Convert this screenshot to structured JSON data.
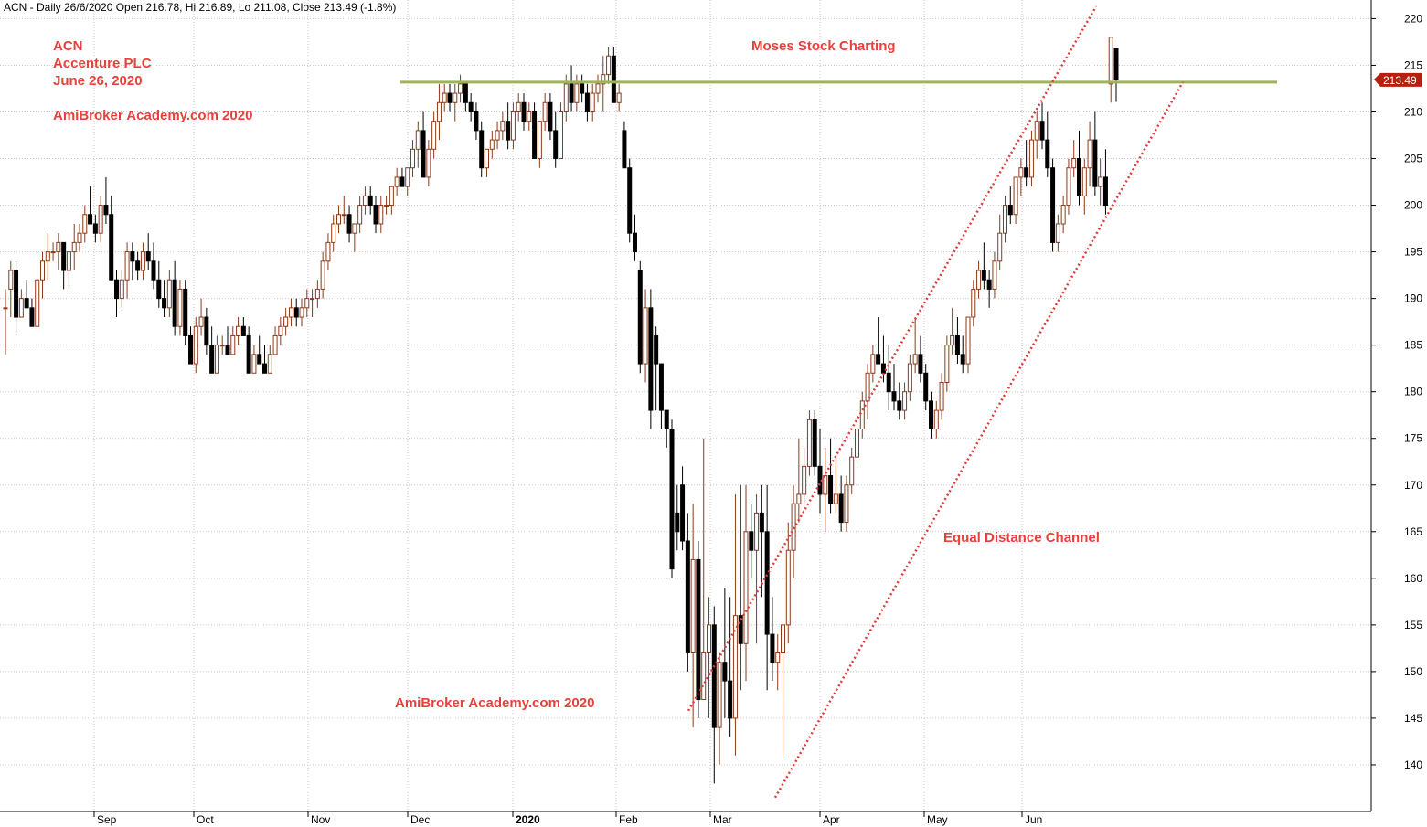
{
  "header": {
    "text": "ACN - Daily 26/6/2020 Open 216.78, Hi 216.89, Lo 211.08, Close 213.49 (-1.8%)"
  },
  "colors": {
    "annotation": "#e8413c",
    "up_candle": "#8b3a1a",
    "down_candle": "#000000",
    "resistance": "#9fb35a",
    "channel": "#e03a3a",
    "grid": "#c8c8c8",
    "price_tag": "#b52010"
  },
  "annotations": {
    "ticker": "ACN",
    "company": "Accenture PLC",
    "date": "June 26, 2020",
    "watermark_top": "AmiBroker Academy.com  2020",
    "title": "Moses Stock Charting",
    "channel_label": "Equal Distance Channel",
    "watermark_bottom": "AmiBroker Academy.com  2020"
  },
  "chart_data": {
    "type": "candlestick",
    "title": "ACN - Daily 26/6/2020",
    "xlabel": "",
    "ylabel": "",
    "ylim": [
      135,
      222
    ],
    "y_ticks": [
      140,
      145,
      150,
      155,
      160,
      165,
      170,
      175,
      180,
      185,
      190,
      195,
      200,
      205,
      210,
      215,
      220
    ],
    "x_ticks": [
      "Sep",
      "Oct",
      "Nov",
      "Dec",
      "2020",
      "Feb",
      "Mar",
      "Apr",
      "May",
      "Jun"
    ],
    "last_close_label": "213.49",
    "last_close": 213.49,
    "grid": true,
    "candles": [
      [
        189,
        191,
        184,
        189
      ],
      [
        191,
        194,
        188,
        193
      ],
      [
        193,
        194,
        186,
        188
      ],
      [
        188,
        191,
        188,
        190
      ],
      [
        190,
        192,
        189,
        189
      ],
      [
        189,
        190,
        187,
        187
      ],
      [
        187,
        192,
        187,
        192
      ],
      [
        192,
        195,
        190,
        194
      ],
      [
        194,
        197,
        192,
        195
      ],
      [
        195,
        196,
        194,
        195
      ],
      [
        195,
        197,
        193,
        196
      ],
      [
        196,
        196,
        191,
        193
      ],
      [
        193,
        195,
        191,
        195
      ],
      [
        195,
        198,
        193,
        196
      ],
      [
        196,
        198,
        195,
        197
      ],
      [
        197,
        200,
        196,
        199
      ],
      [
        199,
        202,
        198,
        198
      ],
      [
        198,
        199,
        196,
        197
      ],
      [
        197,
        201,
        196,
        200
      ],
      [
        200,
        203,
        198,
        199
      ],
      [
        199,
        201,
        192,
        192
      ],
      [
        192,
        193,
        188,
        190
      ],
      [
        190,
        193,
        189,
        192
      ],
      [
        192,
        196,
        190,
        195
      ],
      [
        195,
        196,
        192,
        194
      ],
      [
        194,
        195,
        192,
        193
      ],
      [
        193,
        196,
        192,
        195
      ],
      [
        195,
        197,
        193,
        194
      ],
      [
        194,
        196,
        191,
        192
      ],
      [
        192,
        194,
        189,
        190
      ],
      [
        190,
        192,
        188,
        189
      ],
      [
        189,
        193,
        188,
        192
      ],
      [
        192,
        194,
        186,
        187
      ],
      [
        187,
        192,
        186,
        191
      ],
      [
        191,
        192,
        185,
        186
      ],
      [
        186,
        187,
        183,
        183
      ],
      [
        183,
        188,
        182,
        187
      ],
      [
        187,
        190,
        186,
        188
      ],
      [
        188,
        189,
        184,
        185
      ],
      [
        185,
        187,
        182,
        182
      ],
      [
        182,
        186,
        182,
        185
      ],
      [
        185,
        186,
        184,
        185
      ],
      [
        185,
        187,
        184,
        184
      ],
      [
        184,
        187,
        184,
        186
      ],
      [
        186,
        188,
        185,
        187
      ],
      [
        187,
        188,
        186,
        186
      ],
      [
        186,
        187,
        182,
        182
      ],
      [
        182,
        185,
        182,
        184
      ],
      [
        184,
        186,
        183,
        183
      ],
      [
        183,
        185,
        182,
        182
      ],
      [
        182,
        185,
        182,
        184
      ],
      [
        184,
        187,
        184,
        186
      ],
      [
        186,
        188,
        185,
        187
      ],
      [
        187,
        189,
        186,
        188
      ],
      [
        188,
        190,
        187,
        189
      ],
      [
        189,
        190,
        187,
        188
      ],
      [
        188,
        190,
        187,
        189
      ],
      [
        189,
        191,
        188,
        190
      ],
      [
        190,
        191,
        188,
        190
      ],
      [
        190,
        192,
        189,
        191
      ],
      [
        191,
        195,
        190,
        194
      ],
      [
        194,
        197,
        193,
        196
      ],
      [
        196,
        199,
        195,
        198
      ],
      [
        198,
        200,
        197,
        199
      ],
      [
        199,
        201,
        198,
        199
      ],
      [
        199,
        200,
        196,
        197
      ],
      [
        197,
        198,
        195,
        198
      ],
      [
        198,
        201,
        197,
        200
      ],
      [
        200,
        202,
        199,
        201
      ],
      [
        201,
        202,
        199,
        200
      ],
      [
        200,
        201,
        197,
        198
      ],
      [
        198,
        201,
        197,
        200
      ],
      [
        200,
        201,
        199,
        200
      ],
      [
        200,
        202,
        199,
        202
      ],
      [
        202,
        204,
        201,
        203
      ],
      [
        203,
        204,
        202,
        202
      ],
      [
        202,
        204,
        201,
        204
      ],
      [
        204,
        207,
        203,
        206
      ],
      [
        206,
        209,
        204,
        208
      ],
      [
        208,
        210,
        203,
        203
      ],
      [
        203,
        207,
        202,
        206
      ],
      [
        206,
        210,
        205,
        209
      ],
      [
        209,
        213,
        207,
        211
      ],
      [
        211,
        213,
        210,
        212
      ],
      [
        212,
        213,
        210,
        211
      ],
      [
        211,
        213,
        209,
        212
      ],
      [
        212,
        214,
        211,
        213
      ],
      [
        213,
        213,
        210,
        211
      ],
      [
        211,
        212,
        209,
        210
      ],
      [
        210,
        211,
        207,
        208
      ],
      [
        208,
        209,
        203,
        204
      ],
      [
        204,
        206,
        203,
        206
      ],
      [
        206,
        208,
        205,
        207
      ],
      [
        207,
        209,
        206,
        208
      ],
      [
        208,
        210,
        207,
        209
      ],
      [
        209,
        211,
        206,
        207
      ],
      [
        207,
        211,
        206,
        210
      ],
      [
        210,
        212,
        209,
        211
      ],
      [
        211,
        212,
        208,
        209
      ],
      [
        209,
        211,
        208,
        210
      ],
      [
        210,
        211,
        205,
        205
      ],
      [
        205,
        209,
        204,
        209
      ],
      [
        209,
        212,
        208,
        211
      ],
      [
        211,
        212,
        207,
        208
      ],
      [
        208,
        210,
        204,
        205
      ],
      [
        205,
        211,
        205,
        210
      ],
      [
        210,
        214,
        209,
        213
      ],
      [
        213,
        215,
        210,
        211
      ],
      [
        211,
        214,
        210,
        213
      ],
      [
        213,
        214,
        211,
        212
      ],
      [
        212,
        213,
        209,
        210
      ],
      [
        210,
        213,
        209,
        212
      ],
      [
        212,
        214,
        211,
        213
      ],
      [
        213,
        216,
        210,
        214
      ],
      [
        214,
        217,
        213,
        216
      ],
      [
        216,
        217,
        211,
        211
      ],
      [
        211,
        213,
        210,
        212
      ],
      [
        208,
        209,
        204,
        204
      ],
      [
        204,
        205,
        196,
        197
      ],
      [
        197,
        199,
        194,
        195
      ],
      [
        193,
        194,
        182,
        183
      ],
      [
        183,
        191,
        181,
        189
      ],
      [
        189,
        191,
        176,
        178
      ],
      [
        186,
        187,
        178,
        183
      ],
      [
        183,
        183,
        176,
        178
      ],
      [
        178,
        178,
        174,
        176
      ],
      [
        176,
        177,
        160,
        161
      ],
      [
        167,
        170,
        163,
        165
      ],
      [
        170,
        172,
        163,
        164
      ],
      [
        164,
        167,
        150,
        152
      ],
      [
        152,
        168,
        144,
        162
      ],
      [
        162,
        164,
        145,
        147
      ],
      [
        147,
        175,
        147,
        152
      ],
      [
        152,
        158,
        145,
        155
      ],
      [
        155,
        157,
        138,
        144
      ],
      [
        144,
        152,
        140,
        151
      ],
      [
        151,
        159,
        145,
        149
      ],
      [
        149,
        158,
        143,
        145
      ],
      [
        145,
        169,
        141,
        156
      ],
      [
        156,
        170,
        148,
        153
      ],
      [
        153,
        170,
        149,
        165
      ],
      [
        165,
        168,
        160,
        163
      ],
      [
        163,
        169,
        153,
        167
      ],
      [
        167,
        170,
        158,
        165
      ],
      [
        165,
        170,
        148,
        154
      ],
      [
        154,
        158,
        149,
        151
      ],
      [
        151,
        154,
        148,
        152
      ],
      [
        152,
        155,
        141,
        155
      ],
      [
        155,
        166,
        153,
        163
      ],
      [
        163,
        170,
        160,
        168
      ],
      [
        168,
        175,
        166,
        169
      ],
      [
        169,
        174,
        168,
        172
      ],
      [
        172,
        178,
        171,
        177
      ],
      [
        177,
        178,
        171,
        172
      ],
      [
        172,
        176,
        167,
        169
      ],
      [
        169,
        174,
        165,
        171
      ],
      [
        171,
        175,
        167,
        168
      ],
      [
        168,
        173,
        167,
        169
      ],
      [
        169,
        171,
        165,
        166
      ],
      [
        166,
        171,
        165,
        170
      ],
      [
        170,
        174,
        169,
        173
      ],
      [
        173,
        177,
        172,
        176
      ],
      [
        176,
        180,
        175,
        179
      ],
      [
        179,
        183,
        177,
        182
      ],
      [
        182,
        185,
        181,
        184
      ],
      [
        184,
        188,
        183,
        183
      ],
      [
        183,
        186,
        181,
        182
      ],
      [
        182,
        185,
        178,
        180
      ],
      [
        180,
        183,
        178,
        179
      ],
      [
        179,
        181,
        177,
        178
      ],
      [
        178,
        181,
        177,
        180
      ],
      [
        180,
        184,
        179,
        183
      ],
      [
        183,
        188,
        182,
        184
      ],
      [
        184,
        186,
        181,
        182
      ],
      [
        182,
        183,
        178,
        179
      ],
      [
        179,
        180,
        175,
        176
      ],
      [
        176,
        179,
        175,
        178
      ],
      [
        178,
        182,
        177,
        181
      ],
      [
        181,
        186,
        180,
        185
      ],
      [
        185,
        189,
        184,
        186
      ],
      [
        186,
        188,
        183,
        184
      ],
      [
        184,
        186,
        182,
        183
      ],
      [
        183,
        188,
        182,
        188
      ],
      [
        188,
        192,
        187,
        191
      ],
      [
        191,
        194,
        190,
        193
      ],
      [
        193,
        196,
        191,
        192
      ],
      [
        192,
        193,
        189,
        191
      ],
      [
        191,
        195,
        190,
        194
      ],
      [
        194,
        199,
        193,
        197
      ],
      [
        197,
        201,
        196,
        200
      ],
      [
        200,
        202,
        198,
        199
      ],
      [
        199,
        203,
        198,
        203
      ],
      [
        203,
        205,
        201,
        204
      ],
      [
        204,
        207,
        202,
        203
      ],
      [
        203,
        208,
        202,
        207
      ],
      [
        207,
        210,
        205,
        209
      ],
      [
        209,
        211,
        206,
        207
      ],
      [
        207,
        210,
        203,
        204
      ],
      [
        204,
        205,
        195,
        196
      ],
      [
        196,
        199,
        195,
        198
      ],
      [
        198,
        201,
        197,
        200
      ],
      [
        200,
        205,
        199,
        204
      ],
      [
        204,
        207,
        203,
        205
      ],
      [
        205,
        208,
        200,
        201
      ],
      [
        201,
        205,
        199,
        204
      ],
      [
        204,
        209,
        202,
        207
      ],
      [
        207,
        210,
        201,
        202
      ],
      [
        202,
        205,
        200,
        203
      ],
      [
        203,
        206,
        199,
        200
      ],
      [
        213,
        218,
        211,
        218
      ],
      [
        216.78,
        216.89,
        211.08,
        213.49
      ]
    ]
  }
}
